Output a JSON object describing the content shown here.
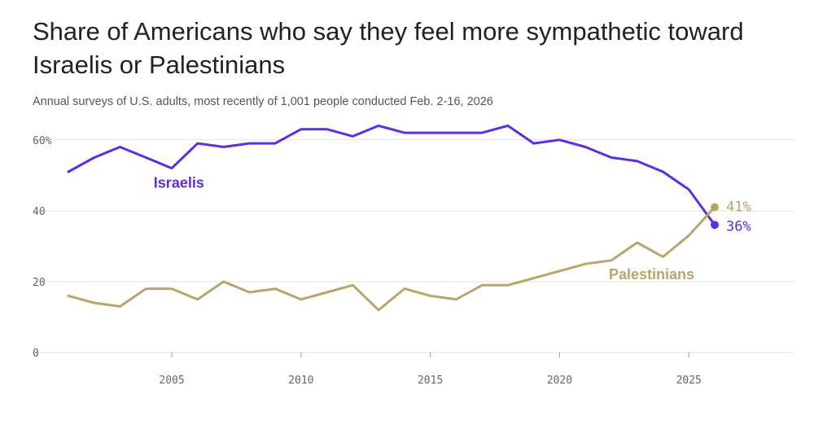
{
  "title": "Share of Americans who say they feel more sympathetic toward Israelis or Palestinians",
  "subtitle": "Annual surveys of U.S. adults, most recently of 1,001 people conducted Feb. 2-16, 2026",
  "chart_data": {
    "type": "line",
    "title": "Share of Americans who say they feel more sympathetic toward Israelis or Palestinians",
    "subtitle": "Annual surveys of U.S. adults, most recently of 1,001 people conducted Feb. 2-16, 2026",
    "xlabel": "",
    "ylabel": "",
    "xlim": [
      2001,
      2026
    ],
    "ylim": [
      0,
      65
    ],
    "grid": true,
    "x": [
      2001,
      2002,
      2003,
      2004,
      2005,
      2006,
      2007,
      2008,
      2009,
      2010,
      2011,
      2012,
      2013,
      2014,
      2015,
      2016,
      2017,
      2018,
      2019,
      2020,
      2021,
      2022,
      2023,
      2024,
      2025,
      2026
    ],
    "y_ticks": [
      0,
      20,
      40,
      60
    ],
    "y_tick_labels": [
      "0",
      "20",
      "40",
      "60%"
    ],
    "x_ticks": [
      2005,
      2010,
      2015,
      2020,
      2025
    ],
    "x_tick_labels": [
      "2005",
      "2010",
      "2015",
      "2020",
      "2025"
    ],
    "series": [
      {
        "name": "Israelis",
        "color": "#5b2fe0",
        "values": [
          51,
          55,
          58,
          55,
          52,
          59,
          58,
          59,
          59,
          63,
          63,
          61,
          64,
          62,
          62,
          62,
          62,
          64,
          59,
          60,
          58,
          55,
          54,
          51,
          46,
          36
        ],
        "end_label": "36%"
      },
      {
        "name": "Palestinians",
        "color": "#b8a56a",
        "values": [
          16,
          14,
          13,
          18,
          18,
          15,
          20,
          17,
          18,
          15,
          17,
          19,
          12,
          18,
          16,
          15,
          19,
          19,
          21,
          23,
          25,
          26,
          31,
          27,
          33,
          41
        ],
        "end_label": "41%"
      }
    ]
  }
}
